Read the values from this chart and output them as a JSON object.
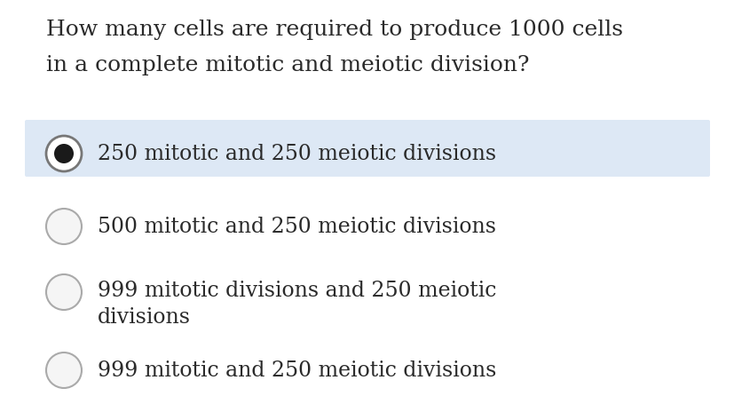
{
  "question_line1": "How many cells are required to produce 1000 cells",
  "question_line2": "in a complete mitotic and meiotic division?",
  "options": [
    {
      "text": "250 mitotic and 250 meiotic divisions",
      "selected": true,
      "multiline": false
    },
    {
      "text": "500 mitotic and 250 meiotic divisions",
      "selected": false,
      "multiline": false
    },
    {
      "text_line1": "999 mitotic divisions and 250 meiotic",
      "text_line2": "divisions",
      "selected": false,
      "multiline": true
    },
    {
      "text": "999 mitotic and 250 meiotic divisions",
      "selected": false,
      "multiline": false
    }
  ],
  "bg_color": "#ffffff",
  "highlight_color": "#dde8f5",
  "text_color": "#2a2a2a",
  "question_fontsize": 18,
  "option_fontsize": 17,
  "circle_color_empty_face": "#f5f5f5",
  "circle_color_empty_edge": "#aaaaaa",
  "circle_color_selected_face": "#ffffff",
  "circle_color_selected_edge": "#777777",
  "circle_color_selected_inner": "#1a1a1a",
  "fig_width": 8.28,
  "fig_height": 4.56,
  "dpi": 100
}
